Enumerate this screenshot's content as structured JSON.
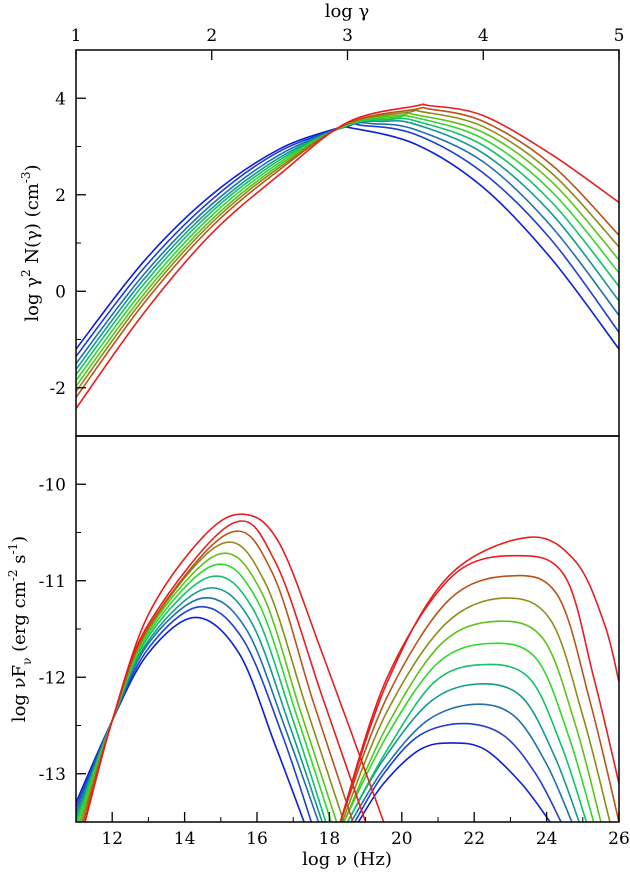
{
  "chart_data": [
    {
      "type": "line",
      "panel": "top",
      "xlabel": "log γ",
      "ylabel": {
        "main": "log γ",
        "sup": "2",
        "mid": " N(γ) (cm",
        "sup2": "-3",
        "end": ")"
      },
      "xlim": [
        1,
        5
      ],
      "ylim": [
        -3,
        5
      ],
      "xticks": [
        1,
        2,
        3,
        4,
        5
      ],
      "xtick_labels": [
        "1",
        "2",
        "3",
        "4",
        "5"
      ],
      "yticks": [
        -2,
        0,
        2,
        4
      ],
      "ytick_labels": [
        "-2",
        "0",
        "2",
        "4"
      ],
      "series": [
        {
          "color": "#0a1fd8",
          "x": [
            1,
            1.5,
            2,
            2.5,
            2.95,
            3,
            3.5,
            4,
            4.5,
            5
          ],
          "y": [
            -1.2,
            0.62,
            2.0,
            2.95,
            3.4,
            3.4,
            3.05,
            2.15,
            0.68,
            -1.2
          ]
        },
        {
          "color": "#1e3fcf",
          "x": [
            1,
            1.5,
            2,
            2.5,
            3.0,
            3.1,
            3.5,
            4,
            4.5,
            5
          ],
          "y": [
            -1.35,
            0.48,
            1.9,
            2.9,
            3.42,
            3.44,
            3.25,
            2.45,
            1.07,
            -0.85
          ]
        },
        {
          "color": "#1f6fb0",
          "x": [
            1,
            1.5,
            2,
            2.5,
            3.0,
            3.2,
            3.5,
            4,
            4.5,
            5
          ],
          "y": [
            -1.5,
            0.35,
            1.8,
            2.83,
            3.43,
            3.47,
            3.35,
            2.68,
            1.35,
            -0.5
          ]
        },
        {
          "color": "#129a8c",
          "x": [
            1,
            1.5,
            2,
            2.5,
            3.0,
            3.25,
            3.5,
            4,
            4.5,
            5
          ],
          "y": [
            -1.62,
            0.25,
            1.72,
            2.77,
            3.44,
            3.52,
            3.46,
            2.86,
            1.62,
            -0.2
          ]
        },
        {
          "color": "#10c06a",
          "x": [
            1,
            1.5,
            2,
            2.5,
            3.0,
            3.3,
            3.5,
            4,
            4.5,
            5
          ],
          "y": [
            -1.73,
            0.15,
            1.65,
            2.72,
            3.44,
            3.56,
            3.53,
            3.02,
            1.86,
            0.1
          ]
        },
        {
          "color": "#2ed82e",
          "x": [
            1,
            1.5,
            2,
            2.5,
            3.0,
            3.35,
            3.5,
            4,
            4.5,
            5
          ],
          "y": [
            -1.85,
            0.04,
            1.57,
            2.67,
            3.45,
            3.6,
            3.6,
            3.16,
            2.08,
            0.38
          ]
        },
        {
          "color": "#5cc21a",
          "x": [
            1,
            1.5,
            2,
            2.5,
            3.0,
            3.4,
            3.5,
            4,
            4.5,
            5
          ],
          "y": [
            -1.97,
            -0.06,
            1.49,
            2.62,
            3.46,
            3.65,
            3.66,
            3.29,
            2.28,
            0.65
          ]
        },
        {
          "color": "#8c8a1a",
          "x": [
            1,
            1.5,
            2,
            2.5,
            3.0,
            3.45,
            3.55,
            4,
            4.5,
            5
          ],
          "y": [
            -2.08,
            -0.15,
            1.42,
            2.57,
            3.47,
            3.71,
            3.72,
            3.41,
            2.46,
            0.92
          ]
        },
        {
          "color": "#b8541a",
          "x": [
            1,
            1.5,
            2,
            2.5,
            3.0,
            3.5,
            3.6,
            4,
            4.5,
            5
          ],
          "y": [
            -2.2,
            -0.25,
            1.34,
            2.52,
            3.48,
            3.77,
            3.78,
            3.52,
            2.63,
            1.16
          ]
        },
        {
          "color": "#e81e1e",
          "x": [
            1,
            1.5,
            2,
            2.5,
            3.0,
            3.5,
            3.6,
            4,
            4.5,
            5
          ],
          "y": [
            -2.43,
            -0.45,
            1.2,
            2.42,
            3.5,
            3.84,
            3.85,
            3.64,
            2.84,
            1.84
          ]
        }
      ]
    },
    {
      "type": "line",
      "panel": "bottom",
      "xlabel": "log ν (Hz)",
      "ylabel": {
        "main": "log νF",
        "sub": "ν",
        "mid": " (erg cm",
        "sup": "-2",
        "mid2": " s",
        "sup2": "-1",
        "end": ")"
      },
      "xlim": [
        11,
        26
      ],
      "ylim": [
        -13.5,
        -9.5
      ],
      "xticks": [
        12,
        14,
        16,
        18,
        20,
        22,
        24,
        26
      ],
      "xtick_labels": [
        "12",
        "14",
        "16",
        "18",
        "20",
        "22",
        "24",
        "26"
      ],
      "yticks": [
        -13,
        -12,
        -11,
        -10
      ],
      "ytick_labels": [
        "-13",
        "-12",
        "-11",
        "-10"
      ],
      "series": [
        {
          "color": "#0a1fd8",
          "synchrotron": {
            "x": [
              11,
              12,
              13,
              14.3,
              15.5,
              16.5,
              17.3
            ],
            "y": [
              -13.3,
              -12.45,
              -11.75,
              -11.38,
              -11.75,
              -12.7,
              -13.5
            ]
          },
          "compton": {
            "x": [
              18.8,
              19.5,
              20.5,
              21.4,
              22.3,
              23.3,
              24.1
            ],
            "y": [
              -13.5,
              -13.1,
              -12.75,
              -12.68,
              -12.75,
              -13.1,
              -13.5
            ]
          }
        },
        {
          "color": "#1e3fcf",
          "synchrotron": {
            "x": [
              11,
              12,
              13,
              14.4,
              15.6,
              16.7,
              17.5
            ],
            "y": [
              -13.35,
              -12.45,
              -11.7,
              -11.27,
              -11.6,
              -12.6,
              -13.5
            ]
          },
          "compton": {
            "x": [
              18.7,
              19.5,
              20.5,
              21.7,
              22.8,
              23.7,
              24.4
            ],
            "y": [
              -13.5,
              -13.0,
              -12.6,
              -12.48,
              -12.6,
              -13.0,
              -13.5
            ]
          }
        },
        {
          "color": "#1f6fb0",
          "synchrotron": {
            "x": [
              11,
              12,
              13,
              14.5,
              15.7,
              16.8,
              17.7
            ],
            "y": [
              -13.4,
              -12.45,
              -11.65,
              -11.18,
              -11.5,
              -12.55,
              -13.5
            ]
          },
          "compton": {
            "x": [
              18.6,
              19.5,
              20.7,
              22.0,
              23.1,
              24.0,
              24.7
            ],
            "y": [
              -13.5,
              -12.95,
              -12.45,
              -12.28,
              -12.4,
              -12.9,
              -13.5
            ]
          }
        },
        {
          "color": "#129a8c",
          "synchrotron": {
            "x": [
              11,
              12,
              13,
              14.6,
              15.8,
              16.9,
              17.8
            ],
            "y": [
              -13.45,
              -12.45,
              -11.62,
              -11.08,
              -11.4,
              -12.5,
              -13.5
            ]
          },
          "compton": {
            "x": [
              18.5,
              19.5,
              20.8,
              22.1,
              23.3,
              24.2,
              24.9
            ],
            "y": [
              -13.5,
              -12.85,
              -12.25,
              -12.07,
              -12.2,
              -12.8,
              -13.5
            ]
          }
        },
        {
          "color": "#10c06a",
          "synchrotron": {
            "x": [
              11,
              12,
              13,
              14.7,
              15.9,
              17.0,
              17.9
            ],
            "y": [
              -13.5,
              -12.45,
              -11.58,
              -10.96,
              -11.3,
              -12.45,
              -13.5
            ]
          },
          "compton": {
            "x": [
              18.5,
              19.6,
              20.9,
              22.2,
              23.5,
              24.4,
              25.1
            ],
            "y": [
              -13.5,
              -12.75,
              -12.05,
              -11.87,
              -12.0,
              -12.7,
              -13.5
            ]
          }
        },
        {
          "color": "#2ed82e",
          "synchrotron": {
            "x": [
              11.05,
              12,
              13,
              14.8,
              16.0,
              17.1,
              18.05
            ],
            "y": [
              -13.5,
              -12.45,
              -11.55,
              -10.84,
              -11.2,
              -12.4,
              -13.5
            ]
          },
          "compton": {
            "x": [
              18.4,
              19.6,
              21.0,
              22.4,
              23.7,
              24.6,
              25.3
            ],
            "y": [
              -13.5,
              -12.6,
              -11.85,
              -11.65,
              -11.8,
              -12.6,
              -13.5
            ]
          }
        },
        {
          "color": "#5cc21a",
          "synchrotron": {
            "x": [
              11.1,
              12,
              13,
              14.9,
              16.1,
              17.2,
              18.2
            ],
            "y": [
              -13.5,
              -12.45,
              -11.52,
              -10.73,
              -11.1,
              -12.35,
              -13.5
            ]
          },
          "compton": {
            "x": [
              18.4,
              19.6,
              21.1,
              22.6,
              23.9,
              24.8,
              25.5
            ],
            "y": [
              -13.5,
              -12.5,
              -11.65,
              -11.42,
              -11.6,
              -12.5,
              -13.5
            ]
          }
        },
        {
          "color": "#8c8a1a",
          "synchrotron": {
            "x": [
              11.15,
              12,
              13,
              15.0,
              16.2,
              17.35,
              18.4
            ],
            "y": [
              -13.5,
              -12.45,
              -11.5,
              -10.62,
              -11.0,
              -12.3,
              -13.5
            ]
          },
          "compton": {
            "x": [
              18.35,
              19.6,
              21.2,
              22.8,
              24.1,
              25.0,
              25.75
            ],
            "y": [
              -13.5,
              -12.35,
              -11.45,
              -11.18,
              -11.4,
              -12.4,
              -13.5
            ]
          }
        },
        {
          "color": "#b8541a",
          "synchrotron": {
            "x": [
              11.2,
              12,
              13,
              15.2,
              16.4,
              17.55,
              18.65
            ],
            "y": [
              -13.5,
              -12.45,
              -11.48,
              -10.51,
              -10.9,
              -12.25,
              -13.5
            ]
          },
          "compton": {
            "x": [
              18.3,
              19.6,
              21.3,
              23.0,
              24.3,
              25.2,
              26.0
            ],
            "y": [
              -13.5,
              -12.2,
              -11.2,
              -10.95,
              -11.15,
              -12.25,
              -13.5
            ]
          }
        },
        {
          "color": "#e81e1e",
          "synchrotron": {
            "x": [
              11.25,
              12,
              13,
              15.3,
              16.5,
              17.8,
              19.0
            ],
            "y": [
              -13.5,
              -12.45,
              -11.45,
              -10.41,
              -10.8,
              -12.2,
              -13.5
            ]
          },
          "compton": {
            "x": [
              18.3,
              19.6,
              21.4,
              23.2,
              24.5,
              25.3,
              26.0
            ],
            "y": [
              -13.5,
              -12.0,
              -10.95,
              -10.74,
              -10.95,
              -12.0,
              -13.1
            ]
          }
        },
        {
          "color": "#e81e1e",
          "synchrotron": {
            "x": [
              16.5,
              17.8,
              19.0
            ],
            "y": [
              -10.31,
              -11.8,
              -13.5
            ]
          },
          "compton": {
            "x": [
              22.5,
              23.5,
              24.5,
              25.5,
              26.0
            ],
            "y": [
              -10.65,
              -10.55,
              -10.75,
              -11.5,
              -12.15
            ]
          }
        }
      ]
    }
  ]
}
